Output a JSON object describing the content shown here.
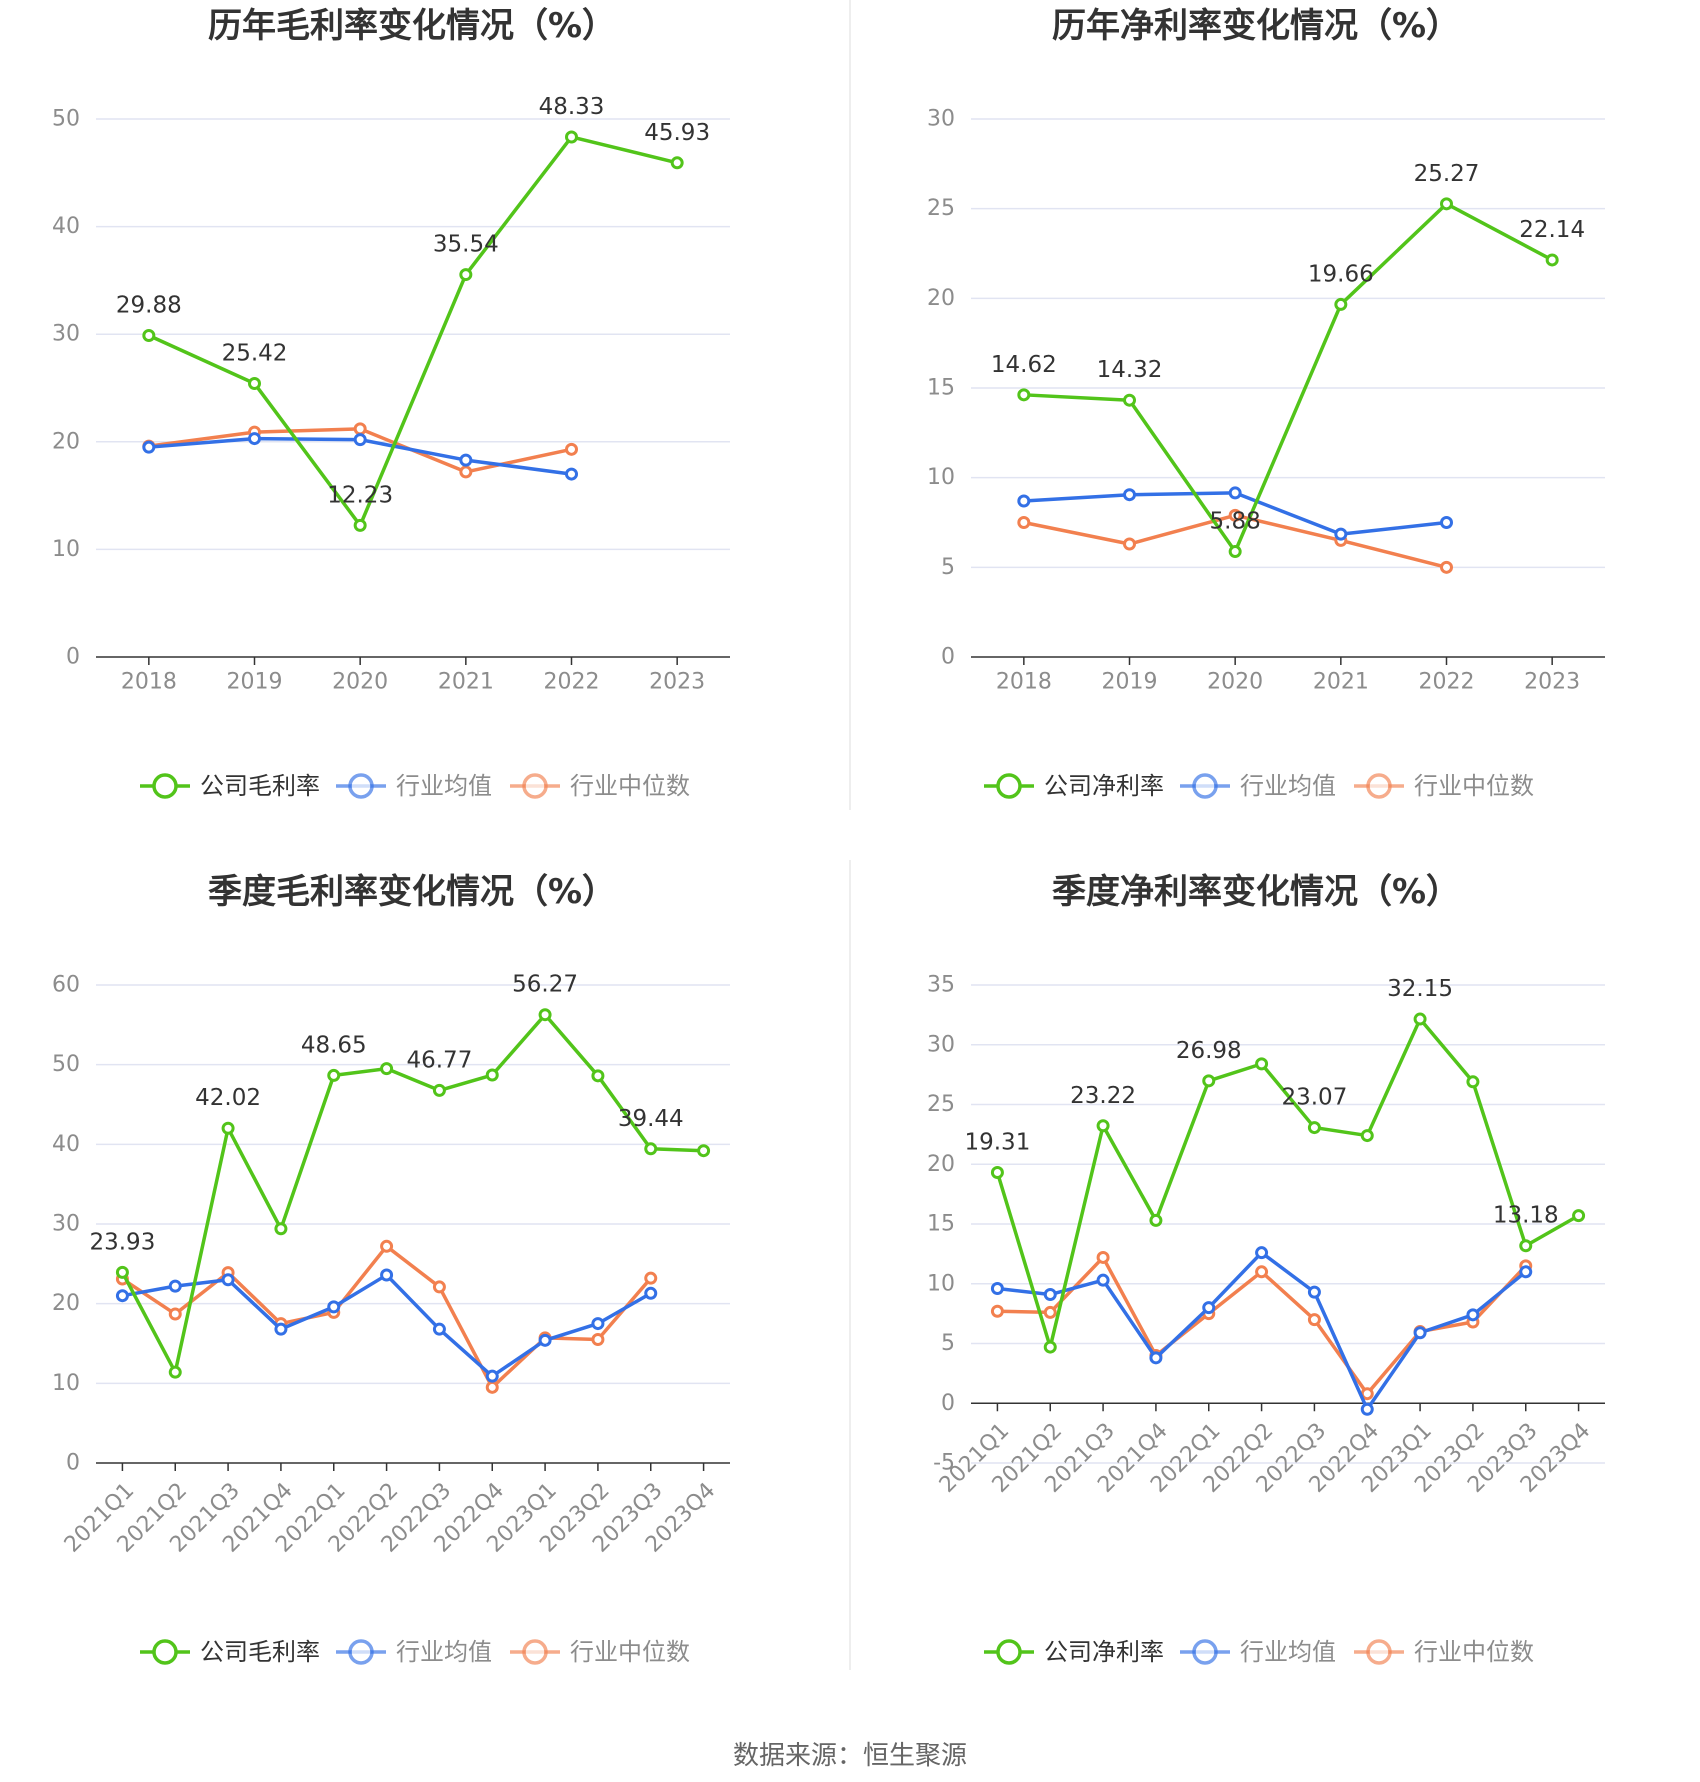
{
  "colors": {
    "company": "#52c41a",
    "industry_avg": "#3370e6",
    "industry_median": "#f2804f",
    "grid": "#e1e4f2",
    "axis": "#333333",
    "tick_text": "#8c8c8c",
    "title": "#333333",
    "label": "#333333",
    "divider": "#eeeeee"
  },
  "source_text": "数据来源：恒生聚源",
  "chart_data": [
    {
      "type": "line",
      "title": "历年毛利率变化情况（%）",
      "categories": [
        "2018",
        "2019",
        "2020",
        "2021",
        "2022",
        "2023"
      ],
      "ylim": [
        0,
        50
      ],
      "yticks": [
        0,
        10,
        20,
        30,
        40,
        50
      ],
      "rotate_x_labels": false,
      "series": [
        {
          "name": "公司毛利率",
          "color_key": "company",
          "values": [
            29.88,
            25.42,
            12.23,
            35.54,
            48.33,
            45.93
          ],
          "labels": [
            "29.88",
            "25.42",
            "12.23",
            "35.54",
            "48.33",
            "45.93"
          ]
        },
        {
          "name": "行业均值",
          "color_key": "industry_avg",
          "values": [
            19.5,
            20.3,
            20.2,
            18.3,
            17.0,
            null
          ]
        },
        {
          "name": "行业中位数",
          "color_key": "industry_median",
          "values": [
            19.6,
            20.9,
            21.2,
            17.2,
            19.3,
            null
          ]
        }
      ]
    },
    {
      "type": "line",
      "title": "历年净利率变化情况（%）",
      "categories": [
        "2018",
        "2019",
        "2020",
        "2021",
        "2022",
        "2023"
      ],
      "ylim": [
        0,
        30
      ],
      "yticks": [
        0,
        5,
        10,
        15,
        20,
        25,
        30
      ],
      "rotate_x_labels": false,
      "series": [
        {
          "name": "公司净利率",
          "color_key": "company",
          "values": [
            14.62,
            14.32,
            5.88,
            19.66,
            25.27,
            22.14
          ],
          "labels": [
            "14.62",
            "14.32",
            "5.88",
            "19.66",
            "25.27",
            "22.14"
          ]
        },
        {
          "name": "行业均值",
          "color_key": "industry_avg",
          "values": [
            8.7,
            9.05,
            9.15,
            6.85,
            7.5,
            null
          ]
        },
        {
          "name": "行业中位数",
          "color_key": "industry_median",
          "values": [
            7.5,
            6.3,
            7.9,
            6.5,
            5.0,
            null
          ]
        }
      ]
    },
    {
      "type": "line",
      "title": "季度毛利率变化情况（%）",
      "categories": [
        "2021Q1",
        "2021Q2",
        "2021Q3",
        "2021Q4",
        "2022Q1",
        "2022Q2",
        "2022Q3",
        "2022Q4",
        "2023Q1",
        "2023Q2",
        "2023Q3",
        "2023Q4"
      ],
      "ylim": [
        0,
        60
      ],
      "yticks": [
        0,
        10,
        20,
        30,
        40,
        50,
        60
      ],
      "rotate_x_labels": true,
      "series": [
        {
          "name": "公司毛利率",
          "color_key": "company",
          "values": [
            23.93,
            11.4,
            42.02,
            29.4,
            48.65,
            49.5,
            46.77,
            48.7,
            56.27,
            48.6,
            39.44,
            39.2
          ],
          "labels": [
            "23.93",
            null,
            "42.02",
            null,
            "48.65",
            null,
            "46.77",
            null,
            "56.27",
            null,
            "39.44",
            null
          ]
        },
        {
          "name": "行业均值",
          "color_key": "industry_avg",
          "values": [
            21.0,
            22.2,
            23.0,
            16.8,
            19.6,
            23.6,
            16.8,
            10.9,
            15.4,
            17.5,
            21.3,
            null
          ]
        },
        {
          "name": "行业中位数",
          "color_key": "industry_median",
          "values": [
            23.1,
            18.7,
            23.9,
            17.5,
            18.9,
            27.2,
            22.1,
            9.5,
            15.7,
            15.5,
            23.2,
            null
          ]
        }
      ]
    },
    {
      "type": "line",
      "title": "季度净利率变化情况（%）",
      "categories": [
        "2021Q1",
        "2021Q2",
        "2021Q3",
        "2021Q4",
        "2022Q1",
        "2022Q2",
        "2022Q3",
        "2022Q4",
        "2023Q1",
        "2023Q2",
        "2023Q3",
        "2023Q4"
      ],
      "ylim": [
        -5,
        35
      ],
      "yticks": [
        -5,
        0,
        5,
        10,
        15,
        20,
        25,
        30,
        35
      ],
      "rotate_x_labels": true,
      "series": [
        {
          "name": "公司净利率",
          "color_key": "company",
          "values": [
            19.31,
            4.7,
            23.22,
            15.3,
            26.98,
            28.4,
            23.07,
            22.4,
            32.15,
            26.9,
            13.18,
            15.7
          ],
          "labels": [
            "19.31",
            null,
            "23.22",
            null,
            "26.98",
            null,
            "23.07",
            null,
            "32.15",
            null,
            "13.18",
            null
          ]
        },
        {
          "name": "行业均值",
          "color_key": "industry_avg",
          "values": [
            9.6,
            9.1,
            10.3,
            3.8,
            8.0,
            12.6,
            9.3,
            -0.5,
            5.9,
            7.4,
            11.0,
            null
          ]
        },
        {
          "name": "行业中位数",
          "color_key": "industry_median",
          "values": [
            7.7,
            7.6,
            12.2,
            4.0,
            7.5,
            11.0,
            7.0,
            0.8,
            6.0,
            6.8,
            11.5,
            null
          ]
        }
      ]
    }
  ]
}
